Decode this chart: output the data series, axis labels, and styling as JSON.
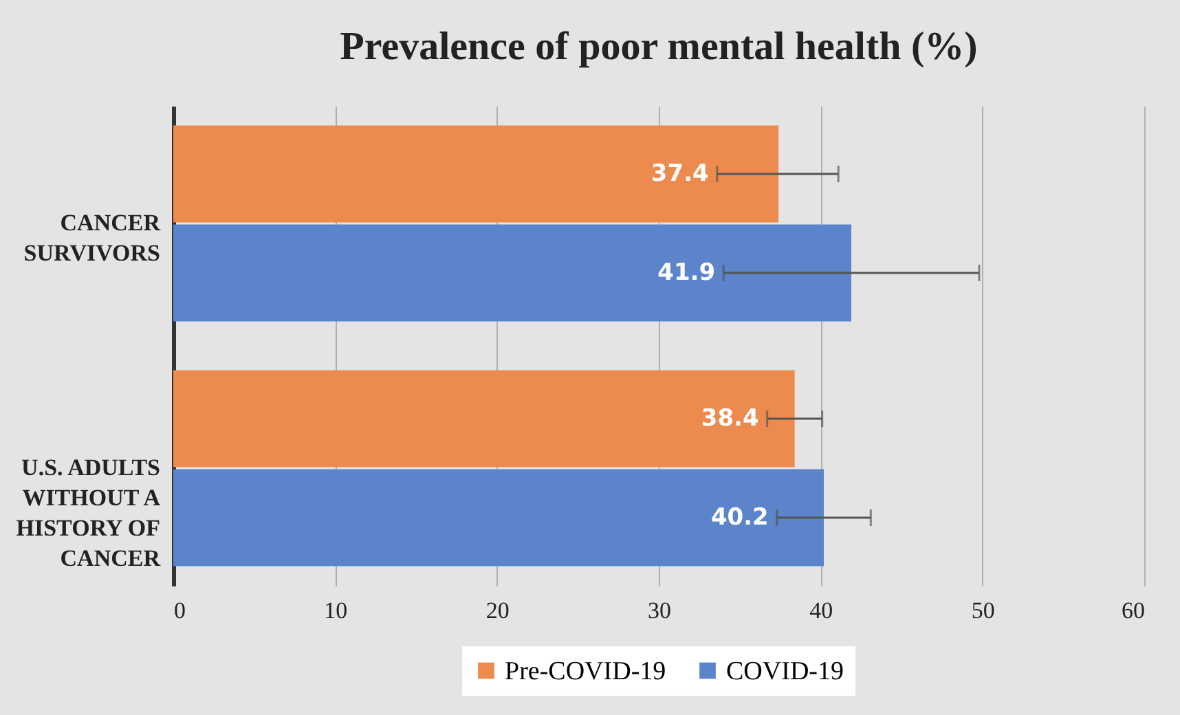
{
  "chart_data": {
    "type": "bar",
    "orientation": "horizontal",
    "title": "Prevalence of poor mental health (%)",
    "categories": [
      "CANCER SURVIVORS",
      "U.S. ADULTS WITHOUT A HISTORY OF CANCER"
    ],
    "series": [
      {
        "name": "Pre-COVID-19",
        "color": "#ed8b4e",
        "values": [
          37.4,
          38.4
        ],
        "errors": [
          [
            33.6,
            41.1
          ],
          [
            36.7,
            40.1
          ]
        ]
      },
      {
        "name": "COVID-19",
        "color": "#5b84cb",
        "values": [
          41.9,
          40.2
        ],
        "errors": [
          [
            34.0,
            49.8
          ],
          [
            37.3,
            43.1
          ]
        ]
      }
    ],
    "xlim": [
      0,
      60
    ],
    "xticks": [
      0,
      10,
      20,
      30,
      40,
      50,
      60
    ],
    "grid": "x",
    "legend": "bottom",
    "data_labels": true
  }
}
